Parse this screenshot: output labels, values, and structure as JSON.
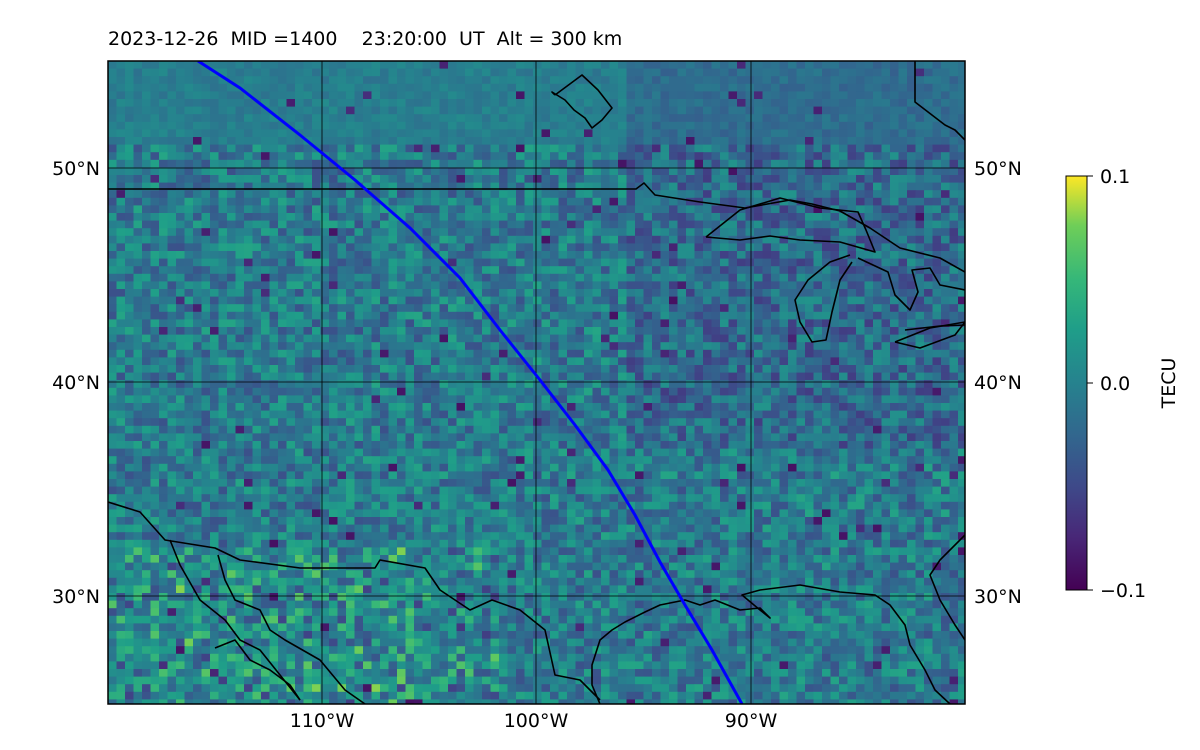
{
  "title": {
    "date": "2023-12-26",
    "mid": "MID =1400",
    "time": "23:20:00  UT",
    "alt": "Alt = 300 km"
  },
  "map": {
    "lat_labels_left": [
      "50°N",
      "40°N",
      "30°N"
    ],
    "lat_labels_right": [
      "50°N",
      "40°N",
      "30°N"
    ],
    "lon_labels": [
      "110°W",
      "100°W",
      "90°W"
    ],
    "lon_range": [
      -120,
      -80
    ],
    "lat_range": [
      25,
      55
    ],
    "gridlines": true,
    "field": "TEC perturbation, noisy around 0, positive (yellow) patches near south-west and Mexico"
  },
  "colorbar": {
    "label": "TECU",
    "ticks": [
      "0.1",
      "0.0",
      "−0.1"
    ],
    "vmin": -0.1,
    "vmax": 0.1,
    "colormap": "viridis"
  },
  "colors": {
    "track": "#0000ff",
    "coast": "#000000",
    "viridis_low": "#440154",
    "viridis_mid": "#21918c",
    "viridis_high": "#fde725"
  }
}
